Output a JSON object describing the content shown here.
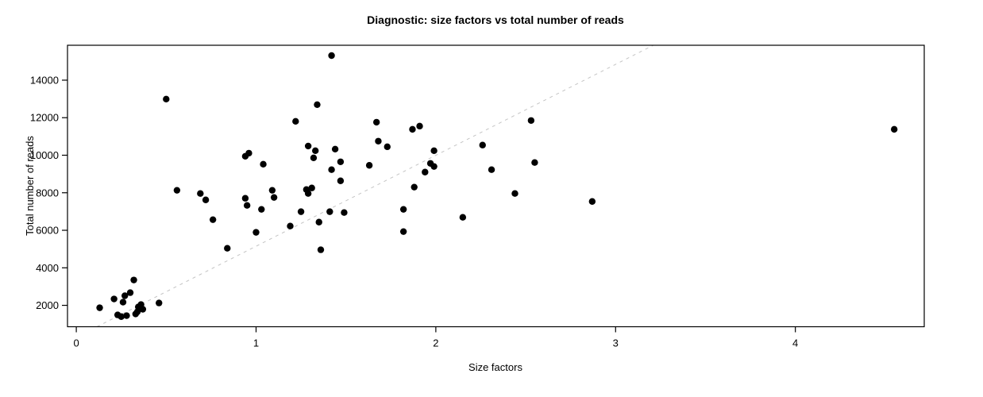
{
  "figure": {
    "title": "Diagnostic: size factors vs total number of reads",
    "xlabel": "Size factors",
    "ylabel": "Total number of reads"
  },
  "chart_data": {
    "type": "scatter",
    "title": "Diagnostic: size factors vs total number of reads",
    "xlabel": "Size factors",
    "ylabel": "Total number of reads",
    "x_ticks": [
      0,
      1,
      2,
      3,
      4
    ],
    "y_ticks": [
      2000,
      4000,
      6000,
      8000,
      10000,
      12000,
      14000
    ],
    "xlim": [
      -0.049,
      4.717
    ],
    "ylim": [
      860,
      15860
    ],
    "grid": false,
    "legend": null,
    "point_color": "#000000",
    "point_radius_px": 4.2,
    "box_color": "#000000",
    "ref_line": {
      "style": "dashed",
      "color": "#c4c4c4",
      "from": [
        0.115,
        860
      ],
      "to": [
        3.21,
        15860
      ]
    },
    "points": [
      [
        1.42,
        15310
      ],
      [
        0.5,
        12990
      ],
      [
        1.34,
        12695
      ],
      [
        1.22,
        11805
      ],
      [
        2.53,
        11850
      ],
      [
        1.67,
        11760
      ],
      [
        1.91,
        11550
      ],
      [
        1.87,
        11380
      ],
      [
        4.55,
        11380
      ],
      [
        1.29,
        10490
      ],
      [
        1.68,
        10750
      ],
      [
        1.73,
        10450
      ],
      [
        2.26,
        10540
      ],
      [
        1.33,
        10240
      ],
      [
        1.44,
        10325
      ],
      [
        1.99,
        10240
      ],
      [
        0.96,
        10110
      ],
      [
        0.94,
        9945
      ],
      [
        1.32,
        9860
      ],
      [
        1.47,
        9650
      ],
      [
        1.04,
        9520
      ],
      [
        1.63,
        9460
      ],
      [
        1.97,
        9565
      ],
      [
        1.99,
        9400
      ],
      [
        2.55,
        9610
      ],
      [
        1.42,
        9230
      ],
      [
        2.31,
        9230
      ],
      [
        1.94,
        9100
      ],
      [
        1.47,
        8635
      ],
      [
        1.88,
        8300
      ],
      [
        1.28,
        8170
      ],
      [
        1.31,
        8255
      ],
      [
        1.29,
        7960
      ],
      [
        0.56,
        8130
      ],
      [
        1.09,
        8130
      ],
      [
        0.69,
        7960
      ],
      [
        2.44,
        7960
      ],
      [
        1.1,
        7750
      ],
      [
        0.94,
        7705
      ],
      [
        0.72,
        7620
      ],
      [
        2.87,
        7535
      ],
      [
        0.95,
        7325
      ],
      [
        1.03,
        7115
      ],
      [
        1.82,
        7115
      ],
      [
        1.25,
        6990
      ],
      [
        1.41,
        6990
      ],
      [
        1.49,
        6945
      ],
      [
        2.15,
        6690
      ],
      [
        0.76,
        6565
      ],
      [
        1.35,
        6435
      ],
      [
        1.19,
        6225
      ],
      [
        1.82,
        5930
      ],
      [
        1.0,
        5890
      ],
      [
        0.84,
        5040
      ],
      [
        1.36,
        4960
      ],
      [
        0.32,
        3350
      ],
      [
        0.3,
        2675
      ],
      [
        0.27,
        2510
      ],
      [
        0.21,
        2340
      ],
      [
        0.26,
        2170
      ],
      [
        0.46,
        2125
      ],
      [
        0.36,
        2040
      ],
      [
        0.345,
        1915
      ],
      [
        0.13,
        1870
      ],
      [
        0.37,
        1790
      ],
      [
        0.34,
        1660
      ],
      [
        0.33,
        1540
      ],
      [
        0.23,
        1490
      ],
      [
        0.28,
        1450
      ],
      [
        0.25,
        1400
      ]
    ]
  }
}
